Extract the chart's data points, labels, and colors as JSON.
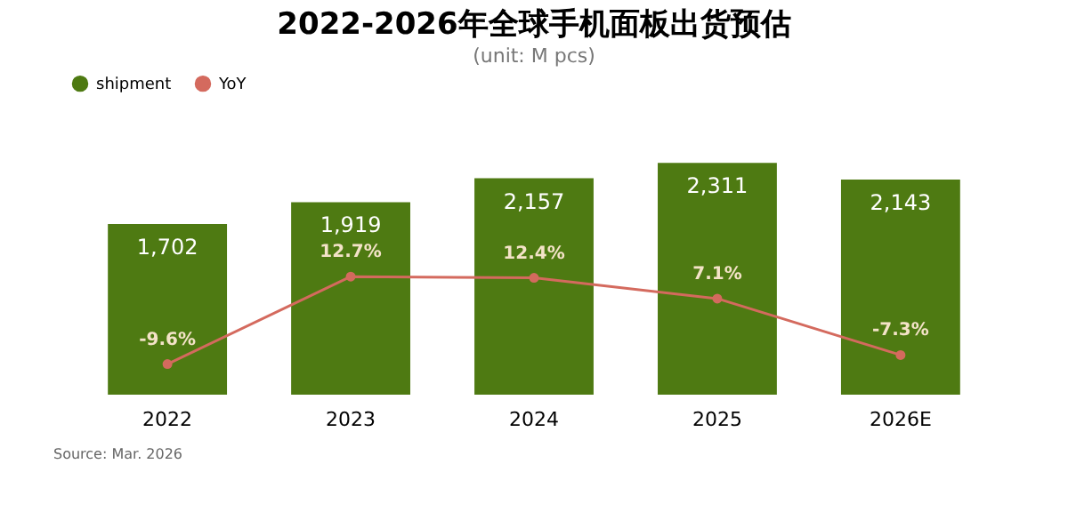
{
  "chart_data": {
    "type": "bar",
    "title": "2022-2026年全球手机面板出货预估",
    "subtitle": "(unit: M pcs)",
    "categories": [
      "2022",
      "2023",
      "2024",
      "2025",
      "2026E"
    ],
    "series": [
      {
        "name": "shipment",
        "color": "#4e7a12",
        "values": [
          1702,
          1919,
          2157,
          2311,
          2143
        ],
        "value_labels": [
          "1,702",
          "1,919",
          "2,157",
          "2,311",
          "2,143"
        ]
      },
      {
        "name": "YoY",
        "type": "line",
        "axis": "y2",
        "color": "#d46a5e",
        "values": [
          -9.6,
          12.7,
          12.4,
          7.1,
          -7.3
        ],
        "value_labels": [
          "-9.6%",
          "12.7%",
          "12.4%",
          "7.1%",
          "-7.3%"
        ]
      }
    ],
    "legend": "top",
    "marker": "circle",
    "grid": false,
    "tick_labels": "x",
    "annotations": [
      "Source: Mar. 2026"
    ]
  }
}
